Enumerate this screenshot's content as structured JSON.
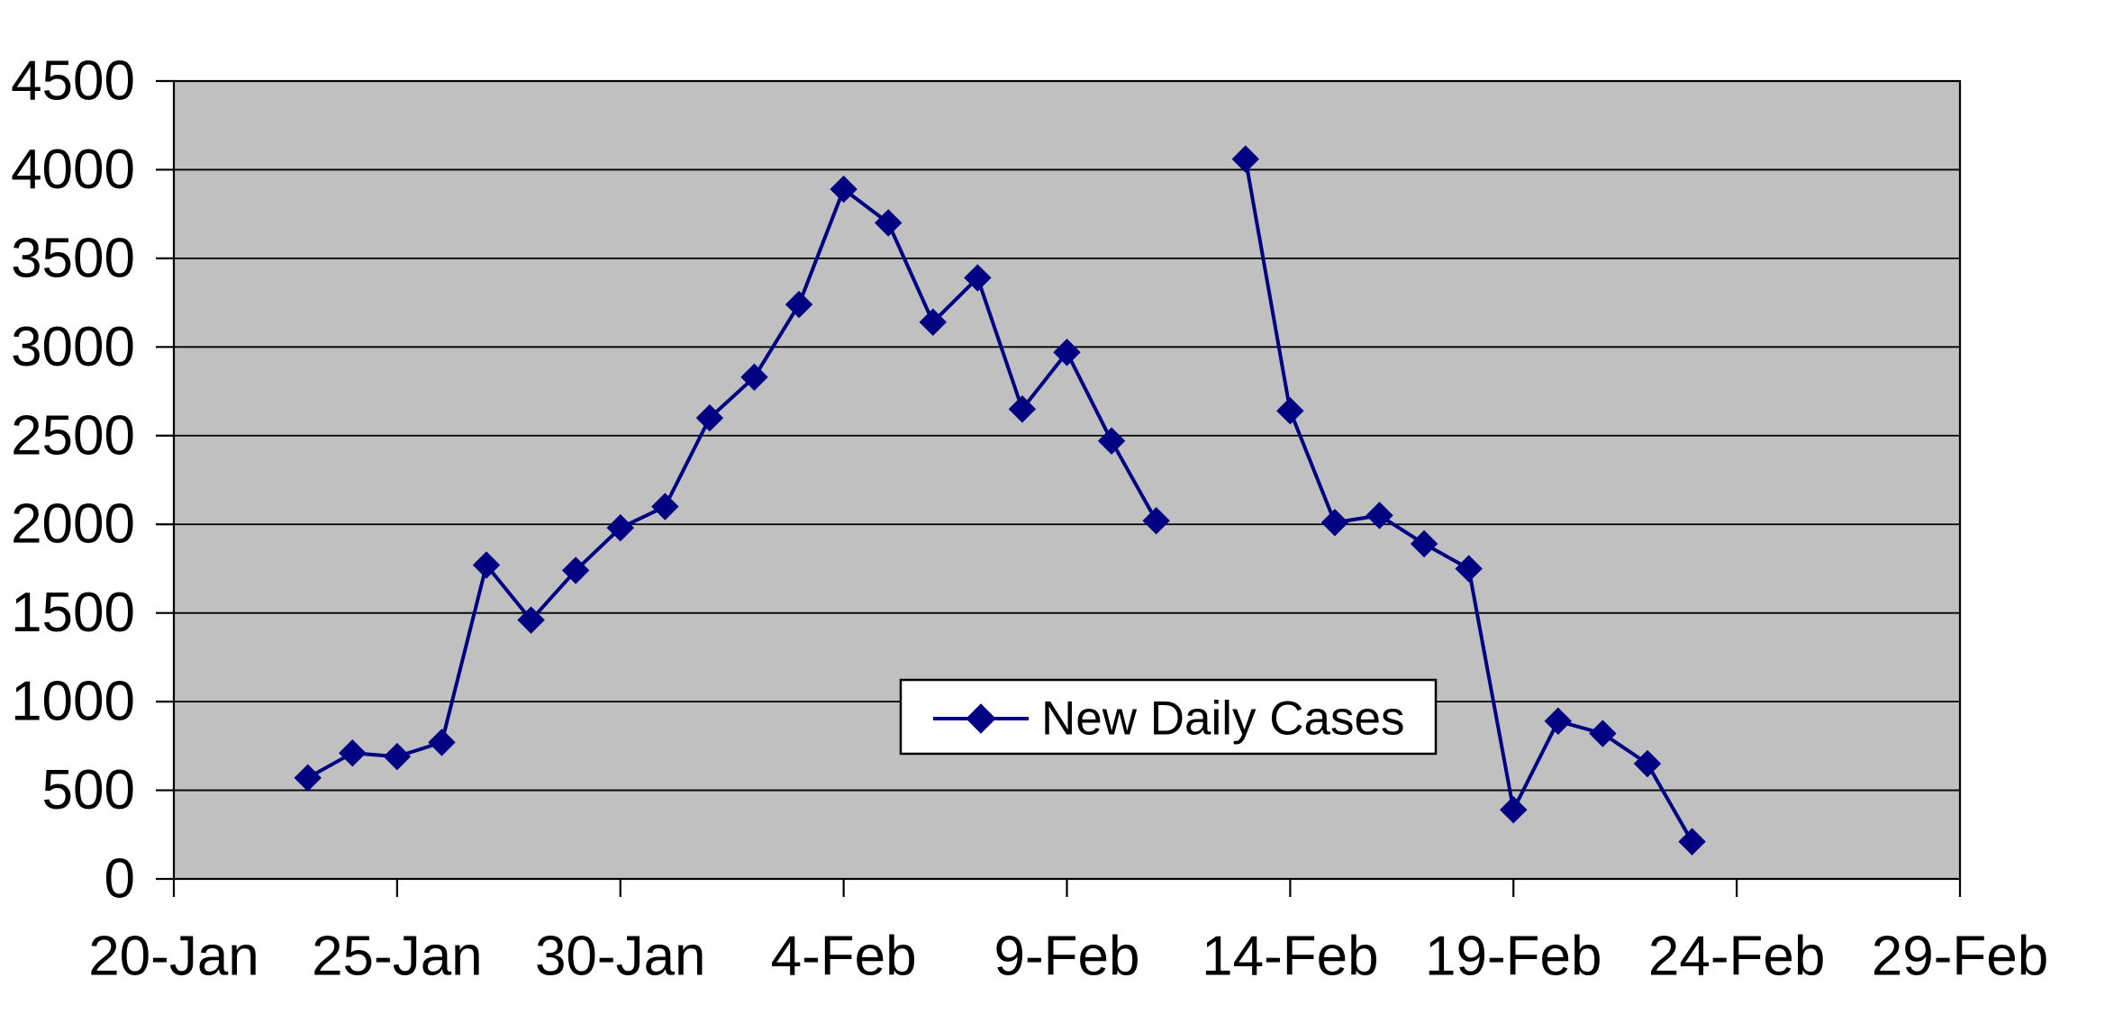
{
  "chart_data": {
    "type": "line",
    "title": "",
    "xlabel": "",
    "ylabel": "",
    "grid": "horizontal",
    "plot_background": "#c0c0c0",
    "page_background": "#ffffff",
    "gridline_color": "#000000",
    "axis_color": "#000000",
    "legend": {
      "position": "inside-center",
      "label": "New Daily Cases",
      "box_fill": "#ffffff",
      "box_border": "#000000"
    },
    "series": [
      {
        "name": "New Daily Cases",
        "color": "#000082",
        "marker": "diamond",
        "points": [
          {
            "date": "23-Jan",
            "value": 570
          },
          {
            "date": "24-Jan",
            "value": 710
          },
          {
            "date": "25-Jan",
            "value": 690
          },
          {
            "date": "26-Jan",
            "value": 770
          },
          {
            "date": "27-Jan",
            "value": 1770
          },
          {
            "date": "28-Jan",
            "value": 1460
          },
          {
            "date": "29-Jan",
            "value": 1740
          },
          {
            "date": "30-Jan",
            "value": 1980
          },
          {
            "date": "31-Jan",
            "value": 2100
          },
          {
            "date": "1-Feb",
            "value": 2600
          },
          {
            "date": "2-Feb",
            "value": 2830
          },
          {
            "date": "3-Feb",
            "value": 3240
          },
          {
            "date": "4-Feb",
            "value": 3890
          },
          {
            "date": "5-Feb",
            "value": 3700
          },
          {
            "date": "6-Feb",
            "value": 3140
          },
          {
            "date": "7-Feb",
            "value": 3390
          },
          {
            "date": "8-Feb",
            "value": 2650
          },
          {
            "date": "9-Feb",
            "value": 2970
          },
          {
            "date": "10-Feb",
            "value": 2470
          },
          {
            "date": "11-Feb",
            "value": 2020
          },
          {
            "date": "12-Feb",
            "value": null
          },
          {
            "date": "13-Feb",
            "value": 4060
          },
          {
            "date": "14-Feb",
            "value": 2640
          },
          {
            "date": "15-Feb",
            "value": 2010
          },
          {
            "date": "16-Feb",
            "value": 2050
          },
          {
            "date": "17-Feb",
            "value": 1890
          },
          {
            "date": "18-Feb",
            "value": 1750
          },
          {
            "date": "19-Feb",
            "value": 390
          },
          {
            "date": "20-Feb",
            "value": 890
          },
          {
            "date": "21-Feb",
            "value": 820
          },
          {
            "date": "22-Feb",
            "value": 650
          },
          {
            "date": "23-Feb",
            "value": 210
          }
        ]
      }
    ],
    "x_axis": {
      "start_date": "20-Jan",
      "end_date": "29-Feb",
      "tick_interval_days": 5,
      "total_days": 40,
      "tick_labels": [
        "20-Jan",
        "25-Jan",
        "30-Jan",
        "4-Feb",
        "9-Feb",
        "14-Feb",
        "19-Feb",
        "24-Feb",
        "29-Feb"
      ]
    },
    "y_axis": {
      "min": 0,
      "max": 4500,
      "tick_step": 500,
      "tick_labels": [
        "0",
        "500",
        "1000",
        "1500",
        "2000",
        "2500",
        "3000",
        "3500",
        "4000",
        "4500"
      ]
    }
  }
}
